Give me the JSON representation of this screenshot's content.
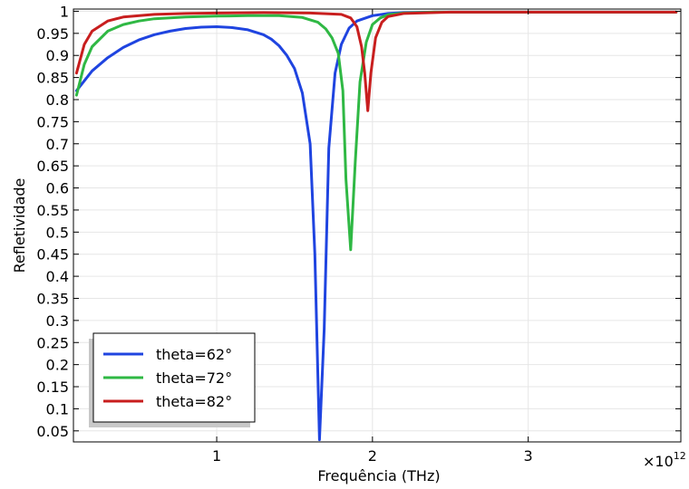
{
  "chart_data": {
    "type": "line",
    "xlabel": "Frequência (THz)",
    "ylabel": "Refletividade",
    "x_multiplier": "×10",
    "x_multiplier_exp": "12",
    "xlim": [
      80000000000.0,
      3980000000000.0
    ],
    "ylim": [
      0.025,
      1.005
    ],
    "x_ticks": [
      {
        "value": 1000000000000.0,
        "label": "1"
      },
      {
        "value": 2000000000000.0,
        "label": "2"
      },
      {
        "value": 3000000000000.0,
        "label": "3"
      }
    ],
    "y_ticks": [
      {
        "value": 0.05,
        "label": "0.05"
      },
      {
        "value": 0.1,
        "label": "0.1"
      },
      {
        "value": 0.15,
        "label": "0.15"
      },
      {
        "value": 0.2,
        "label": "0.2"
      },
      {
        "value": 0.25,
        "label": "0.25"
      },
      {
        "value": 0.3,
        "label": "0.3"
      },
      {
        "value": 0.35,
        "label": "0.35"
      },
      {
        "value": 0.4,
        "label": "0.4"
      },
      {
        "value": 0.45,
        "label": "0.45"
      },
      {
        "value": 0.5,
        "label": "0.5"
      },
      {
        "value": 0.55,
        "label": "0.55"
      },
      {
        "value": 0.6,
        "label": "0.6"
      },
      {
        "value": 0.65,
        "label": "0.65"
      },
      {
        "value": 0.7,
        "label": "0.7"
      },
      {
        "value": 0.75,
        "label": "0.75"
      },
      {
        "value": 0.8,
        "label": "0.8"
      },
      {
        "value": 0.85,
        "label": "0.85"
      },
      {
        "value": 0.9,
        "label": "0.9"
      },
      {
        "value": 0.95,
        "label": "0.95"
      },
      {
        "value": 1.0,
        "label": "1"
      }
    ],
    "grid": true,
    "legend_position": "bottom-left",
    "series": [
      {
        "name": "theta=62°",
        "color": "#1f44e0",
        "x": [
          100000000000.0,
          200000000000.0,
          300000000000.0,
          400000000000.0,
          500000000000.0,
          600000000000.0,
          700000000000.0,
          800000000000.0,
          900000000000.0,
          1000000000000.0,
          1100000000000.0,
          1200000000000.0,
          1300000000000.0,
          1350000000000.0,
          1400000000000.0,
          1450000000000.0,
          1500000000000.0,
          1550000000000.0,
          1600000000000.0,
          1630000000000.0,
          1660000000000.0,
          1690000000000.0,
          1720000000000.0,
          1760000000000.0,
          1800000000000.0,
          1850000000000.0,
          1900000000000.0,
          2000000000000.0,
          2100000000000.0,
          2200000000000.0,
          2400000000000.0,
          2600000000000.0,
          3000000000000.0,
          3500000000000.0,
          3950000000000.0
        ],
        "y": [
          0.82,
          0.865,
          0.895,
          0.918,
          0.935,
          0.947,
          0.955,
          0.961,
          0.964,
          0.965,
          0.963,
          0.958,
          0.947,
          0.937,
          0.922,
          0.9,
          0.87,
          0.815,
          0.7,
          0.45,
          0.03,
          0.28,
          0.69,
          0.86,
          0.925,
          0.962,
          0.978,
          0.99,
          0.995,
          0.997,
          0.998,
          0.998,
          0.998,
          0.998,
          0.998
        ]
      },
      {
        "name": "theta=72°",
        "color": "#2fb844",
        "x": [
          100000000000.0,
          150000000000.0,
          200000000000.0,
          300000000000.0,
          400000000000.0,
          500000000000.0,
          600000000000.0,
          800000000000.0,
          1000000000000.0,
          1200000000000.0,
          1400000000000.0,
          1550000000000.0,
          1650000000000.0,
          1700000000000.0,
          1740000000000.0,
          1780000000000.0,
          1810000000000.0,
          1830000000000.0,
          1860000000000.0,
          1890000000000.0,
          1920000000000.0,
          1960000000000.0,
          2000000000000.0,
          2050000000000.0,
          2100000000000.0,
          2200000000000.0,
          2400000000000.0,
          3000000000000.0,
          3500000000000.0,
          3950000000000.0
        ],
        "y": [
          0.81,
          0.88,
          0.92,
          0.955,
          0.97,
          0.978,
          0.983,
          0.987,
          0.989,
          0.99,
          0.99,
          0.986,
          0.975,
          0.96,
          0.94,
          0.905,
          0.82,
          0.62,
          0.46,
          0.66,
          0.84,
          0.93,
          0.97,
          0.985,
          0.992,
          0.996,
          0.998,
          0.998,
          0.998,
          0.998
        ]
      },
      {
        "name": "theta=82°",
        "color": "#c81e1e",
        "x": [
          100000000000.0,
          150000000000.0,
          200000000000.0,
          300000000000.0,
          400000000000.0,
          600000000000.0,
          800000000000.0,
          1000000000000.0,
          1300000000000.0,
          1600000000000.0,
          1800000000000.0,
          1860000000000.0,
          1900000000000.0,
          1930000000000.0,
          1950000000000.0,
          1970000000000.0,
          1990000000000.0,
          2020000000000.0,
          2060000000000.0,
          2100000000000.0,
          2200000000000.0,
          2500000000000.0,
          3000000000000.0,
          3500000000000.0,
          3950000000000.0
        ],
        "y": [
          0.86,
          0.925,
          0.955,
          0.978,
          0.987,
          0.993,
          0.995,
          0.996,
          0.997,
          0.996,
          0.993,
          0.985,
          0.965,
          0.92,
          0.86,
          0.775,
          0.86,
          0.94,
          0.975,
          0.988,
          0.995,
          0.998,
          0.998,
          0.998,
          0.998
        ]
      }
    ]
  }
}
